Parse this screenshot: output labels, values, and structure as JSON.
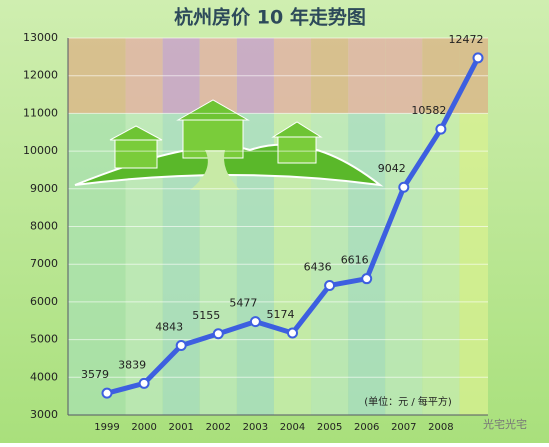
{
  "chart_data": {
    "type": "line",
    "title": "杭州房价 10 年走势图",
    "categories": [
      "1999",
      "2000",
      "2001",
      "2002",
      "2003",
      "2004",
      "2005",
      "2006",
      "2007",
      "2008",
      null
    ],
    "series": [
      {
        "color": "#3d5fe0",
        "values": [
          3579,
          3839,
          4843,
          5155,
          5477,
          5174,
          6436,
          6616,
          9042,
          10582,
          12472
        ]
      }
    ],
    "ylim": [
      3000,
      13000
    ],
    "yticks": [
      3000,
      4000,
      5000,
      6000,
      7000,
      8000,
      9000,
      10000,
      11000,
      12000,
      13000
    ],
    "annotations": [
      "(单位：元 / 每平方)"
    ],
    "watermark": "光宅光宅"
  }
}
